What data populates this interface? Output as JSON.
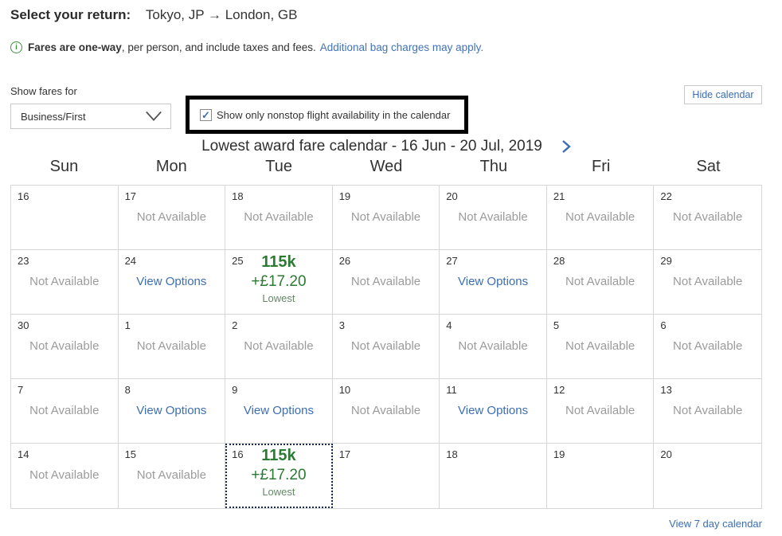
{
  "header": {
    "label": "Select your return:",
    "route": "Tokyo, JP → London, GB"
  },
  "info": {
    "bold": "Fares are one-way",
    "rest": ", per person, and include taxes and fees.",
    "link": "Additional bag charges may apply."
  },
  "controls": {
    "show_fares_label": "Show fares for",
    "cabin_selected": "Business/First",
    "checkmark_glyph": "✓",
    "nonstop_checked": true,
    "nonstop_label": "Show only nonstop flight availability in the calendar",
    "hide_calendar_label": "Hide calendar"
  },
  "calendar": {
    "title": "Lowest award fare calendar - 16 Jun - 20 Jul, 2019",
    "day_headers": [
      "Sun",
      "Mon",
      "Tue",
      "Wed",
      "Thu",
      "Fri",
      "Sat"
    ],
    "labels": {
      "unavailable": "Not Available",
      "options": "View Options"
    },
    "weeks": [
      [
        {
          "date": "16",
          "state": "empty"
        },
        {
          "date": "17",
          "state": "unavailable"
        },
        {
          "date": "18",
          "state": "unavailable"
        },
        {
          "date": "19",
          "state": "unavailable"
        },
        {
          "date": "20",
          "state": "unavailable"
        },
        {
          "date": "21",
          "state": "unavailable"
        },
        {
          "date": "22",
          "state": "unavailable"
        }
      ],
      [
        {
          "date": "23",
          "state": "unavailable"
        },
        {
          "date": "24",
          "state": "options"
        },
        {
          "date": "25",
          "state": "fare",
          "miles": "115k",
          "cash": "+£17.20",
          "tag": "Lowest"
        },
        {
          "date": "26",
          "state": "unavailable"
        },
        {
          "date": "27",
          "state": "options"
        },
        {
          "date": "28",
          "state": "unavailable"
        },
        {
          "date": "29",
          "state": "unavailable"
        }
      ],
      [
        {
          "date": "30",
          "state": "unavailable"
        },
        {
          "date": "1",
          "state": "unavailable"
        },
        {
          "date": "2",
          "state": "unavailable"
        },
        {
          "date": "3",
          "state": "unavailable"
        },
        {
          "date": "4",
          "state": "unavailable"
        },
        {
          "date": "5",
          "state": "unavailable"
        },
        {
          "date": "6",
          "state": "unavailable"
        }
      ],
      [
        {
          "date": "7",
          "state": "unavailable"
        },
        {
          "date": "8",
          "state": "options"
        },
        {
          "date": "9",
          "state": "options"
        },
        {
          "date": "10",
          "state": "unavailable"
        },
        {
          "date": "11",
          "state": "options"
        },
        {
          "date": "12",
          "state": "unavailable"
        },
        {
          "date": "13",
          "state": "unavailable"
        }
      ],
      [
        {
          "date": "14",
          "state": "unavailable"
        },
        {
          "date": "15",
          "state": "unavailable"
        },
        {
          "date": "16",
          "state": "fare",
          "miles": "115k",
          "cash": "+£17.20",
          "tag": "Lowest",
          "selected": true
        },
        {
          "date": "17",
          "state": "empty"
        },
        {
          "date": "18",
          "state": "empty"
        },
        {
          "date": "19",
          "state": "empty"
        },
        {
          "date": "20",
          "state": "empty"
        }
      ]
    ],
    "view7_label": "View 7 day calendar"
  },
  "colors": {
    "accent_green": "#2c7a33",
    "link_blue": "#3c6eb4",
    "unavailable_gray": "#9b9b9b",
    "grid_border": "#d6d6d6",
    "annotation_black": "#000000",
    "selected_dotted": "#182a4e"
  }
}
